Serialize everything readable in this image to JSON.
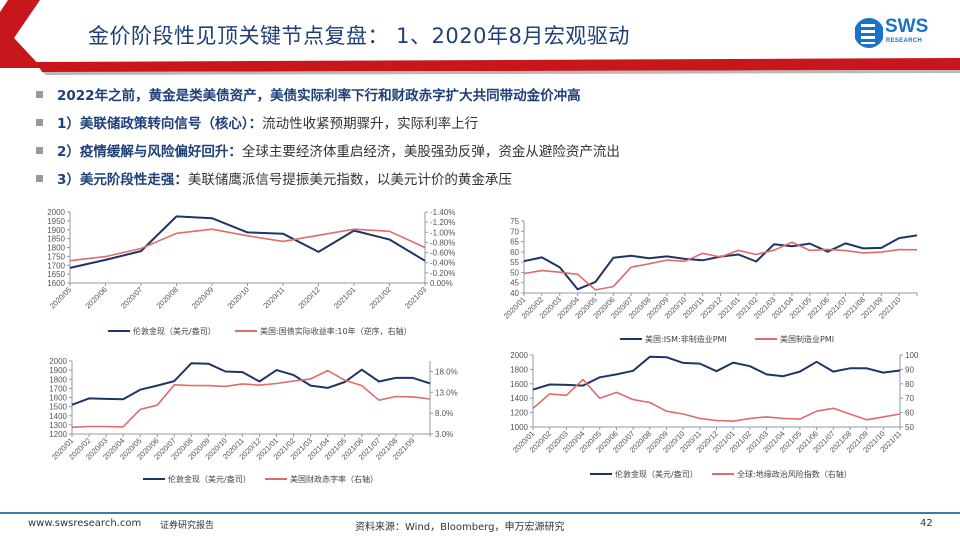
{
  "header": {
    "title": "金价阶段性见顶关键节点复盘： 1、2020年8月宏观驱动",
    "logo": {
      "text": "SWS",
      "sub": "RESEARCH"
    },
    "accent_color": "#c8161d",
    "title_color": "#1f3f7a"
  },
  "bullets": [
    {
      "strong": "2022年之前，黄金是类美债资产，美债实际利率下行和财政赤字扩大共同带动金价冲高",
      "text": ""
    },
    {
      "strong": "1）美联储政策转向信号（核心）：",
      "text": "流动性收紧预期骤升，实际利率上行"
    },
    {
      "strong": "2）疫情缓解与风险偏好回升：",
      "text": "全球主要经济体重启经济，美股强劲反弹，资金从避险资产流出"
    },
    {
      "strong": "3）美元阶段性走强：",
      "text": "美联储鹰派信号提振美元指数，以美元计价的黄金承压"
    }
  ],
  "chart_data": [
    {
      "type": "line",
      "categories": [
        "2020/05",
        "2020/06",
        "2020/07",
        "2020/08",
        "2020/09",
        "2020/10",
        "2020/11",
        "2020/12",
        "2021/01",
        "2021/02",
        "2021/03"
      ],
      "y_left": {
        "min": 1600,
        "max": 2000,
        "ticks": [
          1600,
          1650,
          1700,
          1750,
          1800,
          1850,
          1900,
          1950,
          2000
        ],
        "labels": [
          "1600",
          "1650",
          "1700",
          "1750",
          "1800",
          "1850",
          "1900",
          "1950",
          "2000"
        ]
      },
      "y_right": {
        "min": 0,
        "max": -1.4,
        "inverted": true,
        "ticks": [
          0,
          -0.2,
          -0.4,
          -0.6,
          -0.8,
          -1.0,
          -1.2,
          -1.4
        ],
        "labels": [
          "0.00%",
          "-0.20%",
          "-0.40%",
          "-0.60%",
          "-0.80%",
          "-1.00%",
          "-1.20%",
          "-1.40%"
        ]
      },
      "series": [
        {
          "name": "伦敦金现（美元/盎司）",
          "axis": "left",
          "color": "#1f3566",
          "values": [
            1685,
            1730,
            1780,
            1975,
            1965,
            1885,
            1878,
            1775,
            1895,
            1845,
            1725
          ]
        },
        {
          "name": "美国:国债实际收益率:10年（逆序，右轴）",
          "axis": "right",
          "color": "#e06b6b",
          "values": [
            -0.44,
            -0.52,
            -0.68,
            -0.98,
            -1.06,
            -0.93,
            -0.82,
            -0.94,
            -1.06,
            -1.02,
            -0.7
          ]
        }
      ]
    },
    {
      "type": "line",
      "categories": [
        "2020/01",
        "2020/02",
        "2020/03",
        "2020/04",
        "2020/05",
        "2020/06",
        "2020/07",
        "2020/08",
        "2020/09",
        "2020/10",
        "2020/11",
        "2020/12",
        "2021/01",
        "2021/02",
        "2021/03",
        "2021/04",
        "2021/05",
        "2021/06",
        "2021/07",
        "2021/08",
        "2021/09",
        "2021/10",
        ""
      ],
      "y_left": {
        "min": 40,
        "max": 75,
        "ticks": [
          40,
          45,
          50,
          55,
          60,
          65,
          70,
          75
        ],
        "labels": [
          "40",
          "45",
          "50",
          "55",
          "60",
          "65",
          "70",
          "75"
        ]
      },
      "series": [
        {
          "name": "美国:ISM:非制造业PMI",
          "axis": "left",
          "color": "#1f3566",
          "values": [
            55.5,
            57.3,
            52.5,
            41.8,
            45.4,
            57.1,
            58.1,
            56.9,
            57.8,
            56.6,
            55.9,
            57.7,
            58.7,
            55.3,
            63.7,
            62.7,
            64.0,
            60.1,
            64.1,
            61.7,
            61.9,
            66.7,
            68.0
          ]
        },
        {
          "name": "美国制造业PMI",
          "axis": "left",
          "color": "#e06b6b",
          "values": [
            49.5,
            50.9,
            50.1,
            49.1,
            41.5,
            43.1,
            52.6,
            54.2,
            56.0,
            55.4,
            59.3,
            57.5,
            60.7,
            58.7,
            60.8,
            64.7,
            60.7,
            61.2,
            60.6,
            59.5,
            59.9,
            61.1,
            61.0
          ]
        }
      ]
    },
    {
      "type": "line",
      "categories": [
        "2020/01",
        "2020/02",
        "2020/03",
        "2020/04",
        "2020/05",
        "2020/06",
        "2020/07",
        "2020/08",
        "2020/09",
        "2020/10",
        "2020/11",
        "2020/12",
        "2021/01",
        "2021/02",
        "2021/03",
        "2021/04",
        "2021/05",
        "2021/06",
        "2021/07",
        "2021/08",
        "2021/09",
        ""
      ],
      "y_left": {
        "min": 1200,
        "max": 2000,
        "ticks": [
          1200,
          1300,
          1400,
          1500,
          1600,
          1700,
          1800,
          1900,
          2000
        ],
        "labels": [
          "1200",
          "1300",
          "1400",
          "1500",
          "1600",
          "1700",
          "1800",
          "1900",
          "2000"
        ]
      },
      "y_right": {
        "min": 3,
        "max": 20.5,
        "inverted": false,
        "ticks": [
          3,
          8,
          13,
          18
        ],
        "labels": [
          "3.0%",
          "8.0%",
          "13.0%",
          "18.0%"
        ]
      },
      "series": [
        {
          "name": "伦敦金现（美元/盎司）",
          "axis": "left",
          "color": "#1f3566",
          "values": [
            1520,
            1590,
            1585,
            1580,
            1685,
            1730,
            1780,
            1975,
            1970,
            1885,
            1878,
            1775,
            1900,
            1845,
            1730,
            1705,
            1770,
            1905,
            1775,
            1815,
            1815,
            1755
          ]
        },
        {
          "name": "美国财政赤字率（右轴）",
          "axis": "right",
          "color": "#e06b6b",
          "values": [
            4.6,
            4.8,
            4.8,
            4.7,
            8.9,
            9.9,
            14.8,
            14.6,
            14.6,
            14.4,
            15.0,
            14.7,
            15.1,
            15.7,
            16.2,
            18.2,
            15.9,
            14.6,
            11.1,
            12.0,
            11.9,
            11.4
          ]
        }
      ]
    },
    {
      "type": "line",
      "categories": [
        "2020/01",
        "2020/02",
        "2020/03",
        "2020/04",
        "2020/05",
        "2020/06",
        "2020/07",
        "2020/08",
        "2020/09",
        "2020/10",
        "2020/11",
        "2020/12",
        "2021/01",
        "2021/02",
        "2021/03",
        "2021/04",
        "2021/05",
        "2021/06",
        "2021/07",
        "2021/08",
        "2021/09",
        "2021/10",
        "2021/11"
      ],
      "y_left": {
        "min": 1000,
        "max": 2000,
        "ticks": [
          1000,
          1200,
          1400,
          1600,
          1800,
          2000
        ],
        "labels": [
          "1000",
          "1200",
          "1400",
          "1600",
          "1800",
          "2000"
        ]
      },
      "y_right": {
        "min": 50,
        "max": 100,
        "inverted": false,
        "ticks": [
          50,
          60,
          70,
          80,
          90,
          100
        ],
        "labels": [
          "50",
          "60",
          "70",
          "80",
          "90",
          "100"
        ]
      },
      "series": [
        {
          "name": "伦敦金现（美元/盎司）",
          "axis": "left",
          "color": "#1f3566",
          "values": [
            1520,
            1590,
            1585,
            1575,
            1690,
            1730,
            1780,
            1975,
            1970,
            1890,
            1880,
            1775,
            1895,
            1845,
            1730,
            1705,
            1770,
            1905,
            1770,
            1815,
            1815,
            1755,
            1785
          ]
        },
        {
          "name": "全球:地缘政治风险指数（右轴）",
          "axis": "right",
          "color": "#e06b6b",
          "values": [
            63,
            73,
            72,
            83,
            70,
            74,
            69,
            67,
            61,
            59,
            56,
            54.5,
            54,
            56,
            57,
            56,
            55.5,
            61,
            63,
            59,
            55,
            57,
            59
          ]
        }
      ]
    }
  ],
  "footer": {
    "website": "www.swsresearch.com",
    "report_type": "证券研究报告",
    "source": "资料来源：Wind，Bloomberg，申万宏源研究",
    "page_number": "42"
  }
}
